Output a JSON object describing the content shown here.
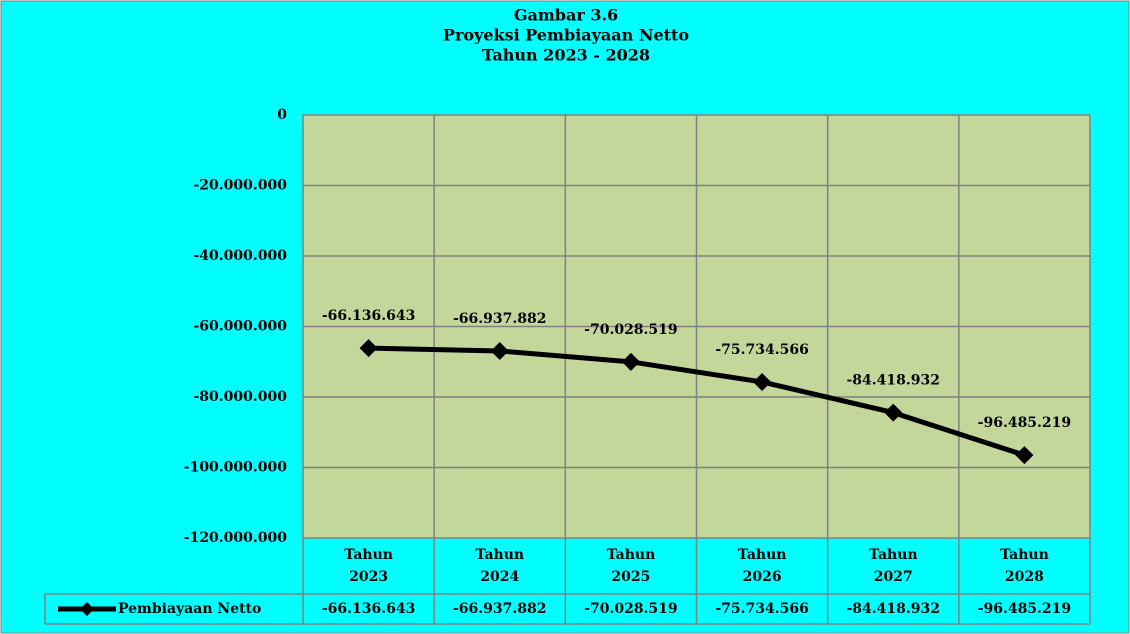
{
  "chart_data": {
    "type": "line",
    "title": [
      "Gambar 3.6",
      "Proyeksi Pembiayaan Netto",
      "Tahun 2023 - 2028"
    ],
    "categories": [
      "Tahun 2023",
      "Tahun 2024",
      "Tahun 2025",
      "Tahun 2026",
      "Tahun 2027",
      "Tahun 2028"
    ],
    "series": [
      {
        "name": "Pembiayaan Netto",
        "color": "#000000",
        "values": [
          -66136643,
          -66937882,
          -70028519,
          -75734566,
          -84418932,
          -96485219
        ],
        "value_labels": [
          "-66.136.643",
          "-66.937.882",
          "-70.028.519",
          "-75.734.566",
          "-84.418.932",
          "-96.485.219"
        ]
      }
    ],
    "ylim": [
      -120000000,
      0
    ],
    "yticks": [
      {
        "value": -120000000,
        "label": "-120.000.000"
      },
      {
        "value": -100000000,
        "label": "-100.000.000"
      },
      {
        "value": -80000000,
        "label": "-80.000.000"
      },
      {
        "value": -60000000,
        "label": "-60.000.000"
      },
      {
        "value": -40000000,
        "label": "-40.000.000"
      },
      {
        "value": -20000000,
        "label": "-20.000.000"
      },
      0
    ],
    "grid": true,
    "plot_color": "#c4d79b",
    "data_table": true
  }
}
